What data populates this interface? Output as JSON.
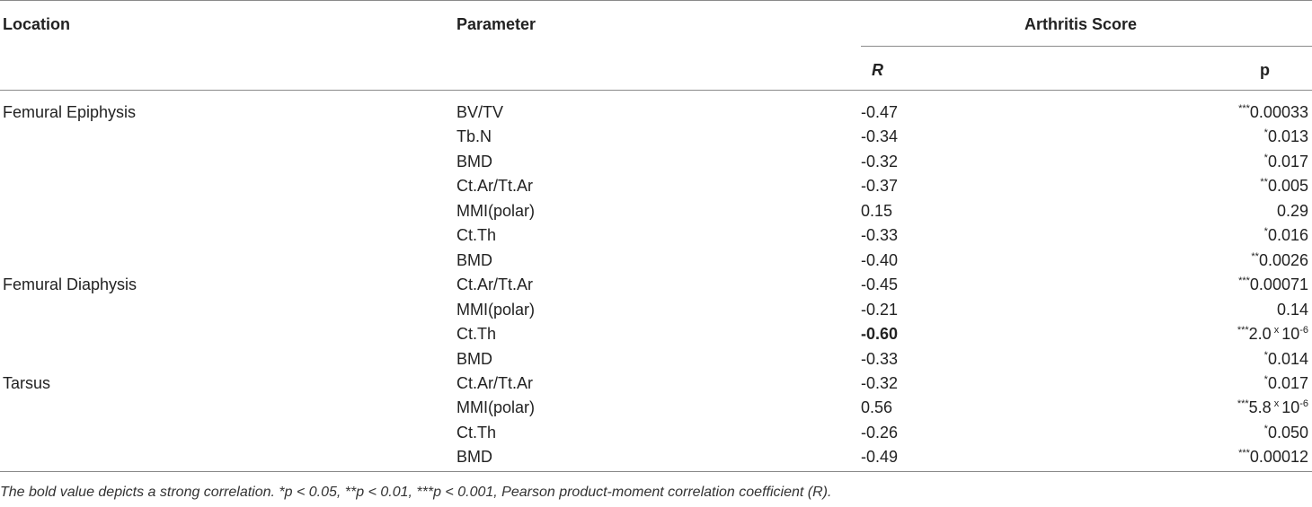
{
  "headers": {
    "location": "Location",
    "parameter": "Parameter",
    "group": "Arthritis Score",
    "r": "R",
    "p": "p"
  },
  "rows": [
    {
      "location": "Femural Epiphysis",
      "parameter": "BV/TV",
      "r": "-0.47",
      "stars": "***",
      "p": "0.00033"
    },
    {
      "location": "",
      "parameter": "Tb.N",
      "r": "-0.34",
      "stars": "*",
      "p": "0.013"
    },
    {
      "location": "",
      "parameter": "BMD",
      "r": "-0.32",
      "stars": "*",
      "p": "0.017"
    },
    {
      "location": "",
      "parameter": "Ct.Ar/Tt.Ar",
      "r": "-0.37",
      "stars": "**",
      "p": "0.005"
    },
    {
      "location": "",
      "parameter": "MMI(polar)",
      "r": "0.15",
      "stars": "",
      "p": "0.29"
    },
    {
      "location": "",
      "parameter": "Ct.Th",
      "r": "-0.33",
      "stars": "*",
      "p": "0.016"
    },
    {
      "location": "",
      "parameter": "BMD",
      "r": "-0.40",
      "stars": "**",
      "p": "0.0026"
    },
    {
      "location": "Femural Diaphysis",
      "parameter": "Ct.Ar/Tt.Ar",
      "r": "-0.45",
      "stars": "***",
      "p": "0.00071"
    },
    {
      "location": "",
      "parameter": "MMI(polar)",
      "r": "-0.21",
      "stars": "",
      "p": "0.14"
    },
    {
      "location": "",
      "parameter": "Ct.Th",
      "r": "-0.60",
      "bold": true,
      "stars": "***",
      "p": "2.0",
      "times": "x",
      "base": "10",
      "exp": "-6"
    },
    {
      "location": "",
      "parameter": "BMD",
      "r": "-0.33",
      "stars": "*",
      "p": "0.014"
    },
    {
      "location": "Tarsus",
      "parameter": "Ct.Ar/Tt.Ar",
      "r": "-0.32",
      "stars": "*",
      "p": "0.017"
    },
    {
      "location": "",
      "parameter": "MMI(polar)",
      "r": "0.56",
      "stars": "***",
      "p": "5.8",
      "times": "x",
      "base": "10",
      "exp": "-6"
    },
    {
      "location": "",
      "parameter": "Ct.Th",
      "r": "-0.26",
      "stars": "*",
      "p": "0.050"
    },
    {
      "location": "",
      "parameter": "BMD",
      "r": "-0.49",
      "stars": "***",
      "p": "0.00012"
    }
  ],
  "footnote": "The bold value depicts a strong correlation. *p < 0.05, **p < 0.01, ***p < 0.001, Pearson product-moment correlation coefficient (R)."
}
